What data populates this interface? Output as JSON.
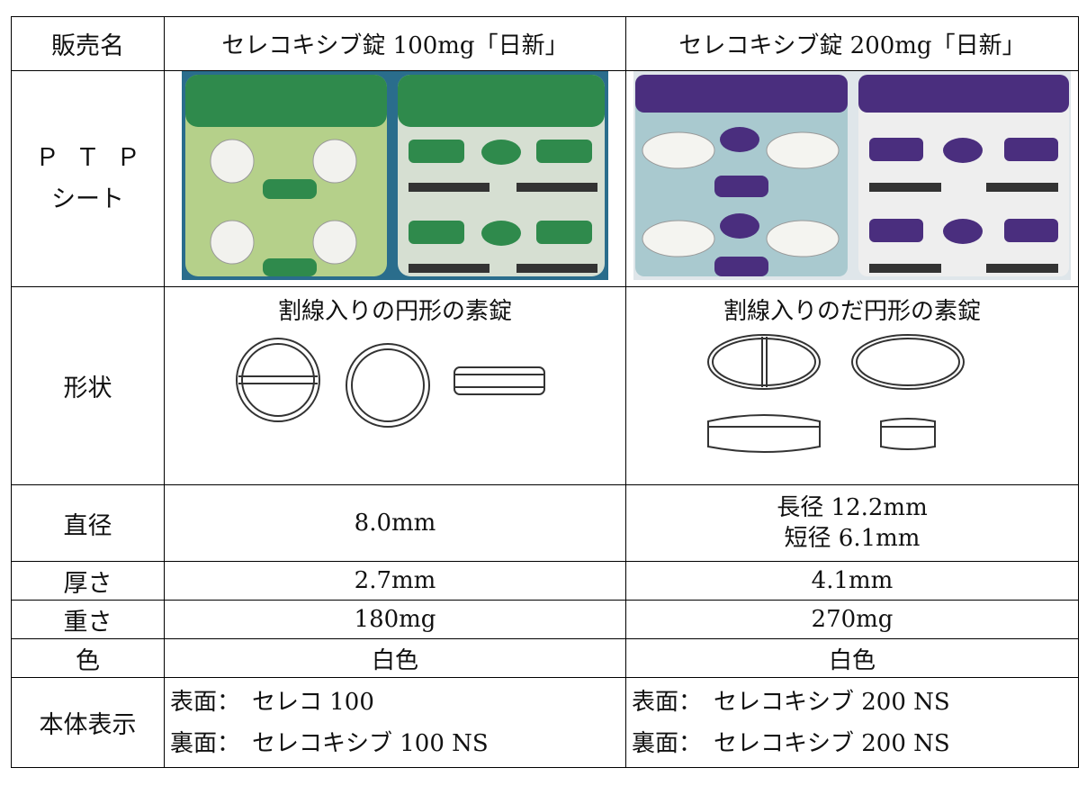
{
  "table": {
    "header": [
      "販売名",
      "セレコキシブ錠 100mg「日新」",
      "セレコキシブ錠 200mg「日新」"
    ],
    "rows": [
      {
        "label": [
          "ＰＴＰ",
          "シート"
        ]
      },
      {
        "label": "形状",
        "cells": [
          "割線入りの円形の素錠",
          "割線入りのだ円形の素錠"
        ]
      },
      {
        "label": "直径",
        "cells": [
          "8.0mm",
          [
            "長径 12.2mm",
            "短径 6.1mm"
          ]
        ]
      },
      {
        "label": "厚さ",
        "cells": [
          "2.7mm",
          "4.1mm"
        ]
      },
      {
        "label": "重さ",
        "cells": [
          "180mg",
          "270mg"
        ]
      },
      {
        "label": "色",
        "cells": [
          "白色",
          "白色"
        ]
      },
      {
        "label": "本体表示",
        "cells": [
          [
            "表面：　セレコ 100",
            "裏面：　セレコキシブ 100 NS"
          ],
          [
            "表面：　セレコキシブ 200 NS",
            "裏面：　セレコキシブ 200 NS"
          ]
        ]
      }
    ]
  }
}
